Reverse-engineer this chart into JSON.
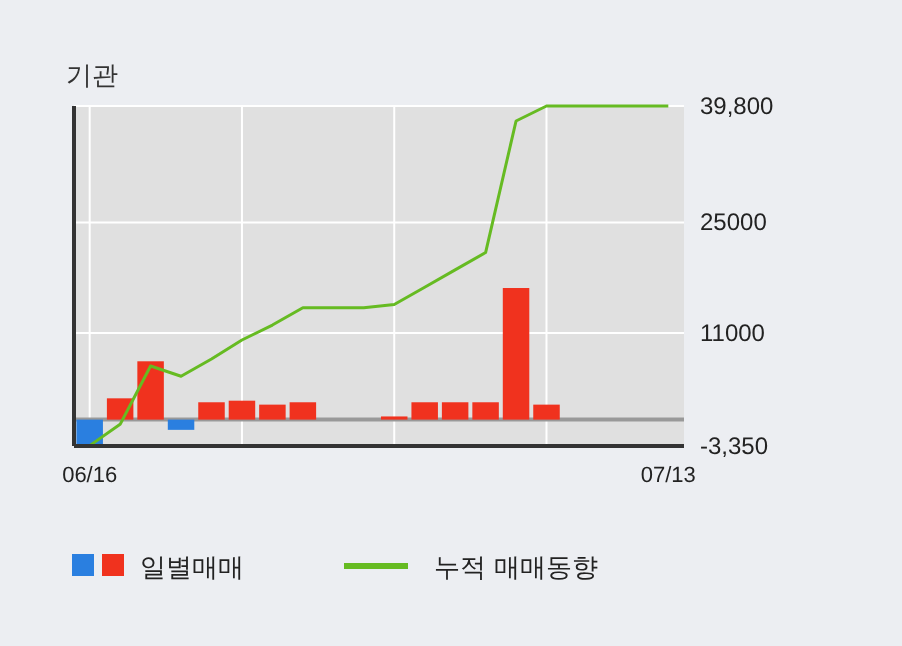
{
  "chart_data": {
    "type": "bar",
    "title": "기관",
    "categories": [
      "06/16",
      null,
      null,
      null,
      null,
      null,
      null,
      null,
      null,
      null,
      null,
      null,
      null,
      null,
      null,
      null,
      null,
      null,
      null,
      "07/13"
    ],
    "series": [
      {
        "name": "일별매매",
        "colors": [
          "#2a7fe0",
          "#f0321e",
          "#f0321e",
          "#2a7fe0",
          "#f0321e",
          "#f0321e",
          "#f0321e",
          "#f0321e",
          "#f0321e",
          "#f0321e",
          "#f0321e",
          "#f0321e",
          "#f0321e",
          "#f0321e",
          "#f0321e",
          "#f0321e",
          "#f0321e",
          "#f0321e",
          "#f0321e",
          "#f0321e"
        ],
        "values": [
          -3300,
          2700,
          7400,
          -1300,
          2200,
          2400,
          1900,
          2200,
          null,
          null,
          400,
          2200,
          2200,
          2200,
          16700,
          1900,
          null,
          null,
          null,
          null
        ]
      },
      {
        "name": "누적 매매동향",
        "type": "line",
        "color": "#66bb22",
        "values": [
          -3300,
          -600,
          6800,
          5500,
          7700,
          10100,
          12000,
          14200,
          14200,
          14200,
          14600,
          16800,
          19000,
          21200,
          37900,
          39800,
          39800,
          39800,
          39800,
          39800
        ]
      }
    ],
    "ylim": [
      -3350,
      39800
    ],
    "yticks": [
      {
        "value": 39800,
        "label": "39,800"
      },
      25000,
      11000,
      {
        "value": -3350,
        "label": "-3,350"
      }
    ],
    "ref_lines": [
      {
        "axis": "y",
        "value": 0,
        "color": "#999999"
      }
    ],
    "grid": true,
    "legend": "bottom"
  }
}
